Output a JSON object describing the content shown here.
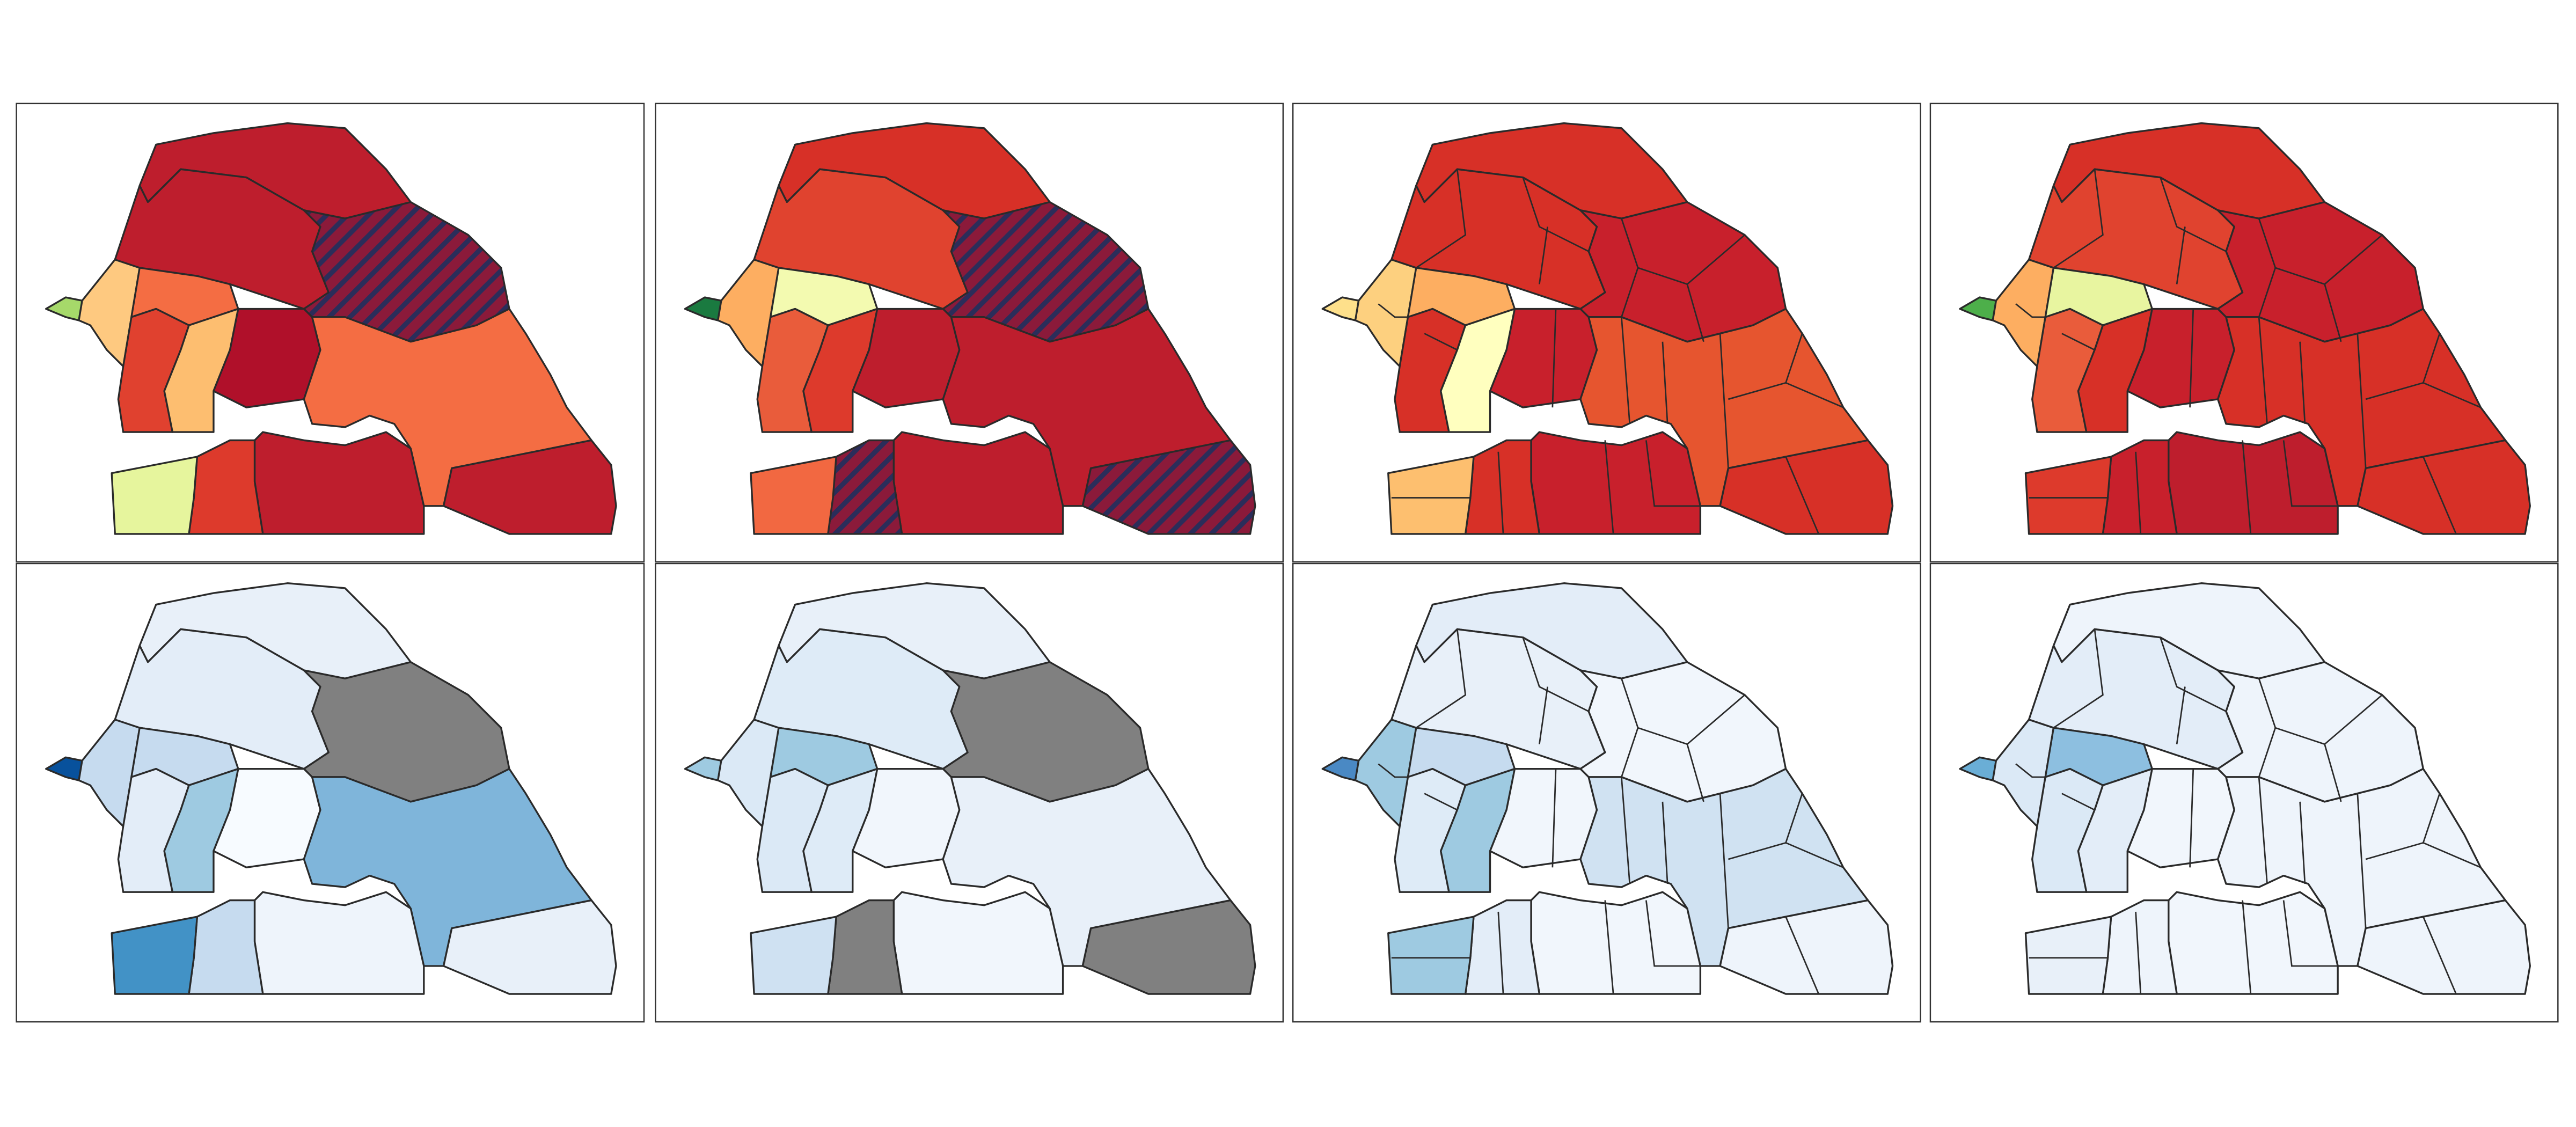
{
  "panels": [
    {
      "fills": [
        "#a6d96a",
        "#fec980",
        "#be1e2d",
        "#be1e2d",
        "#8b1a3a",
        "#f46d43",
        "#e0412f",
        "#fdbe70",
        "#b0102a",
        "#f46d43",
        "#be1e2d",
        "#be1e2d",
        "#dd3a2c",
        "#e6f59d"
      ],
      "hatched": [
        4
      ],
      "detail": false
    },
    {
      "fills": [
        "#1a7a40",
        "#fdae61",
        "#d73027",
        "#e0432f",
        "#8b1a3a",
        "#f3fab0",
        "#e95c3b",
        "#dd3a2c",
        "#be1e2d",
        "#be1e2d",
        "#8b1a3a",
        "#be1e2d",
        "#8b1a3a",
        "#f26841"
      ],
      "hatched": [
        4,
        10,
        12
      ],
      "detail": false
    },
    {
      "fills": [
        "#fee08b",
        "#fdd07f",
        "#d73027",
        "#d73027",
        "#c8202c",
        "#fdae61",
        "#d73027",
        "#ffffbf",
        "#c8202c",
        "#e6552f",
        "#d73027",
        "#c8202c",
        "#d73027",
        "#fdbf6f"
      ],
      "hatched": [],
      "detail": true
    },
    {
      "fills": [
        "#4daf4a",
        "#fdae61",
        "#d73027",
        "#e0432f",
        "#c8202c",
        "#e8f5a0",
        "#e95c3b",
        "#d73027",
        "#c8202c",
        "#d73027",
        "#d73027",
        "#be1e2d",
        "#c8202c",
        "#dd3a2c"
      ],
      "hatched": [],
      "detail": true
    },
    {
      "fills": [
        "#08519c",
        "#c6dbef",
        "#e8f0f9",
        "#e3edf8",
        "#808080",
        "#c6dbef",
        "#e3edf8",
        "#9ecae1",
        "#f7fbff",
        "#7fb5da",
        "#e8f0f9",
        "#eef4fb",
        "#c6dbef",
        "#4292c6"
      ],
      "hatched": [],
      "detail": false
    },
    {
      "fills": [
        "#9ecae1",
        "#dbe9f6",
        "#e8f0f9",
        "#deebf7",
        "#808080",
        "#9ecae1",
        "#dbe9f6",
        "#deebf7",
        "#f1f6fc",
        "#e8f0f9",
        "#808080",
        "#f1f6fc",
        "#808080",
        "#cfe1f2"
      ],
      "hatched": [],
      "detail": false
    },
    {
      "fills": [
        "#4a89c4",
        "#9ecae1",
        "#e3edf8",
        "#e8f0f9",
        "#f1f6fc",
        "#c6dbef",
        "#deebf7",
        "#9ecae1",
        "#f1f6fc",
        "#d0e2f2",
        "#eef4fb",
        "#f1f6fc",
        "#e3edf8",
        "#9ecae1"
      ],
      "hatched": [],
      "detail": true
    },
    {
      "fills": [
        "#6aaed6",
        "#dbe9f6",
        "#eef4fb",
        "#e3edf8",
        "#eef4fb",
        "#8dbfe0",
        "#dbe9f6",
        "#e3edf8",
        "#f1f6fc",
        "#eef4fb",
        "#eef4fb",
        "#f1f6fc",
        "#eef4fb",
        "#e8f0f9"
      ],
      "hatched": [],
      "detail": true
    }
  ]
}
